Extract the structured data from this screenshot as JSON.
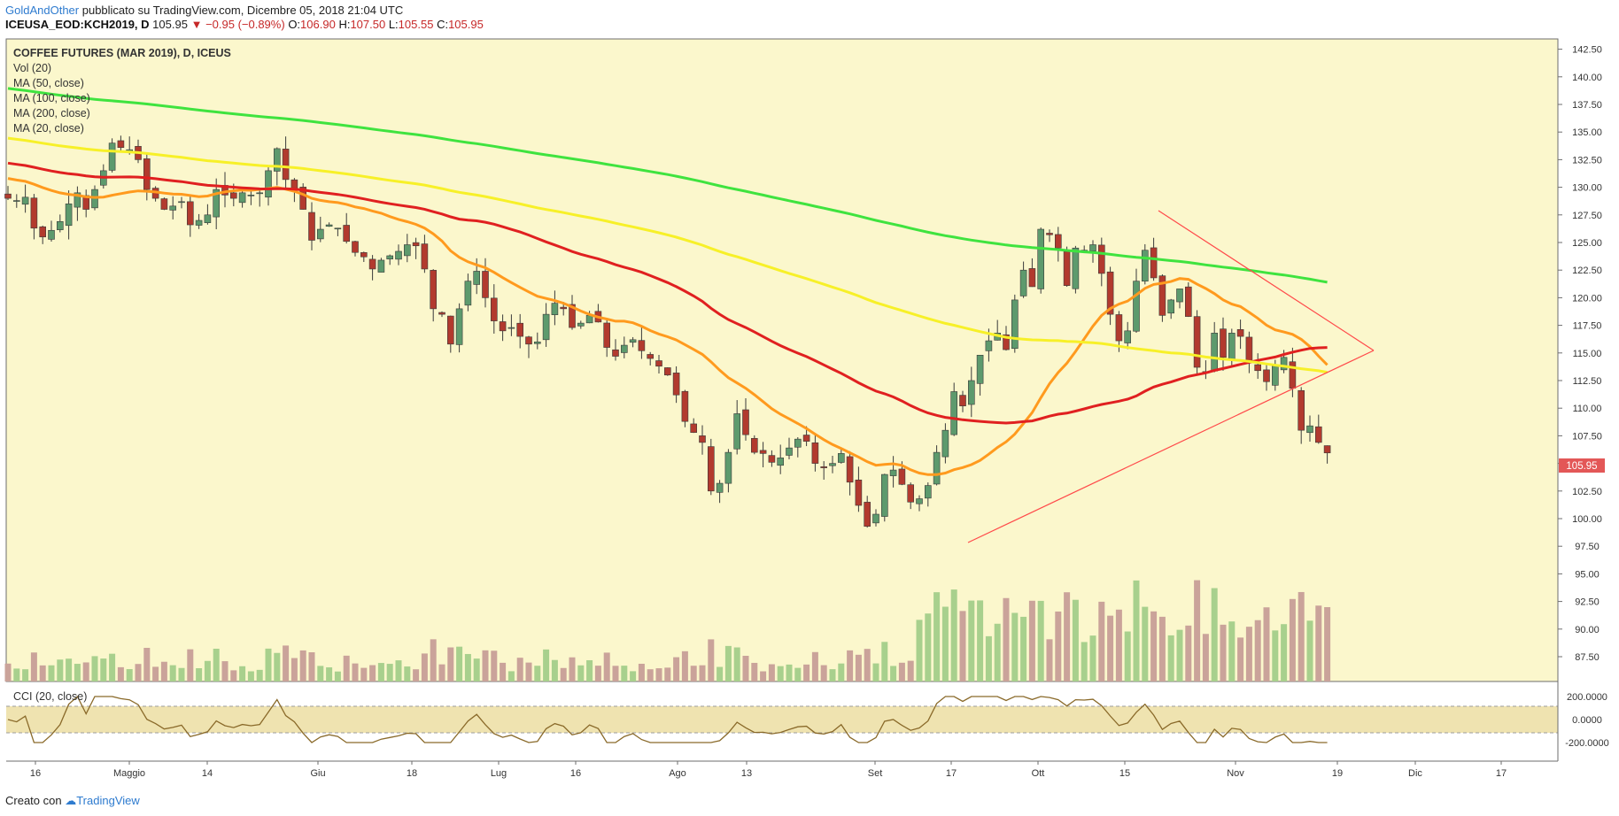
{
  "header": {
    "author": "GoldAndOther",
    "published": "pubblicato su TradingView.com, Dicembre 05, 2018 21:04 UTC",
    "symbol": "ICEUSA_EOD:KCH2019, D",
    "last": "105.95",
    "change": "−0.95 (−0.89%)",
    "open_label": "O:",
    "open": "106.90",
    "high_label": "H:",
    "high": "107.50",
    "low_label": "L:",
    "low": "105.55",
    "close_label": "C:",
    "close": "105.95"
  },
  "legend": {
    "title": "COFFEE FUTURES (MAR 2019), D, ICEUS",
    "items": [
      "Vol (20)",
      "MA (50, close)",
      "MA (100, close)",
      "MA (200, close)",
      "MA (20, close)"
    ],
    "cci": "CCI (20, close)"
  },
  "footer": {
    "created": "Creato con",
    "brand": "TradingView"
  },
  "colors": {
    "up": "#5d9a6d",
    "down": "#b23a2e",
    "vol_up": "#a8d08d",
    "vol_down": "#caa39a",
    "ma50": "#ff9a1e",
    "ma100": "#e02020",
    "ma200": "#f7f028",
    "ma20": "#3fe33f",
    "cci": "#8a6a2a",
    "triangle": "#ff4a4a",
    "pane_bg": "#fbf7cc",
    "badge": "#e35757"
  },
  "chart_data": {
    "type": "candlestick",
    "title": "COFFEE FUTURES (MAR 2019), D, ICEUS",
    "ylim": [
      86.5,
      143.5
    ],
    "y_ticks": [
      "87.50",
      "90.00",
      "92.50",
      "95.00",
      "97.50",
      "100.00",
      "102.50",
      "105.00",
      "107.50",
      "110.00",
      "112.50",
      "115.00",
      "117.50",
      "120.00",
      "122.50",
      "125.00",
      "127.50",
      "130.00",
      "132.50",
      "135.00",
      "137.50",
      "140.00",
      "142.50"
    ],
    "x_ticks": [
      "16",
      "Maggio",
      "14",
      "Giu",
      "18",
      "Lug",
      "16",
      "Ago",
      "13",
      "Set",
      "17",
      "Ott",
      "15",
      "Nov",
      "19",
      "Dic",
      "17"
    ],
    "last_price_label": "105.95",
    "closes": [
      129.0,
      128.8,
      129.1,
      126.3,
      125.5,
      126.1,
      126.9,
      128.5,
      129.5,
      128.0,
      129.8,
      131.5,
      134.0,
      133.6,
      133.4,
      132.5,
      129.8,
      129.0,
      128.0,
      128.3,
      128.7,
      126.6,
      127.0,
      127.5,
      129.8,
      129.3,
      129.0,
      129.5,
      129.3,
      129.5,
      131.5,
      133.5,
      130.7,
      129.7,
      128.0,
      125.2,
      126.2,
      126.6,
      126.3,
      125.1,
      124.1,
      123.7,
      122.6,
      123.4,
      123.8,
      124.2,
      124.8,
      124.7,
      122.6,
      119.0,
      118.5,
      115.8,
      119.0,
      121.5,
      122.4,
      120.0,
      117.9,
      117.0,
      117.3,
      116.5,
      115.8,
      116.0,
      118.5,
      119.5,
      119.0,
      117.3,
      117.7,
      118.4,
      117.8,
      115.5,
      114.7,
      115.7,
      116.2,
      115.2,
      114.5,
      113.8,
      113.0,
      111.2,
      108.8,
      107.8,
      106.9,
      102.5,
      103.2,
      106.0,
      109.5,
      107.6,
      106.0,
      105.9,
      105.1,
      105.5,
      106.4,
      107.2,
      107.0,
      105.0,
      104.6,
      105.0,
      105.9,
      103.3,
      101.2,
      99.3,
      100.4,
      104.0,
      104.4,
      103.1,
      101.5,
      101.8,
      103.0,
      106.0,
      108.0,
      111.5,
      110.2,
      112.5,
      114.8,
      116.1,
      116.8,
      115.3,
      119.8,
      122.5,
      121.0,
      126.2,
      125.7,
      124.5,
      121.1,
      124.5,
      124.3,
      124.8,
      122.2,
      118.5,
      116.1,
      117.0,
      121.5,
      124.3,
      121.8,
      118.4,
      119.8,
      120.8,
      118.3,
      113.7,
      113.2,
      116.8,
      114.6,
      116.8,
      116.5,
      114.2,
      113.4,
      112.4,
      113.8,
      114.6,
      111.8,
      108.0,
      108.4,
      106.9,
      105.95
    ],
    "ma20_legend_value_sample": "MA (20, close)",
    "cci_ticks": [
      "200.0000",
      "0.0000",
      "-200.0000"
    ]
  }
}
